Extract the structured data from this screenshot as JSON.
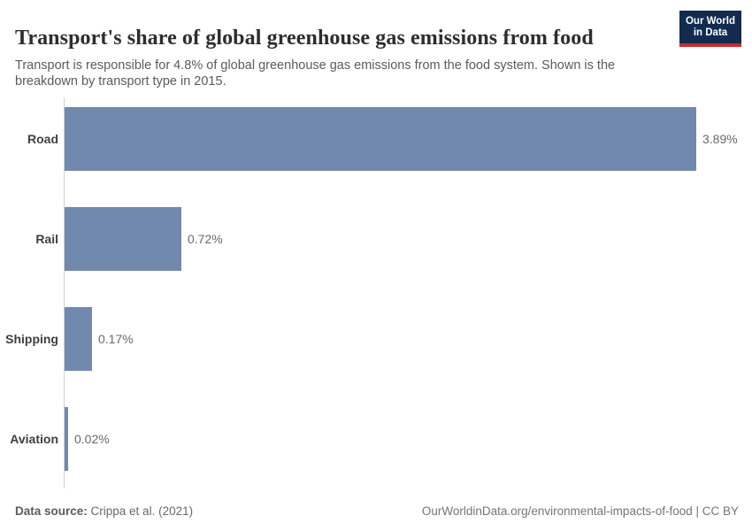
{
  "header": {
    "title": "Transport's share of global greenhouse gas emissions from food",
    "subtitle": "Transport is responsible for 4.8% of global greenhouse gas emissions from the food system. Shown is the breakdown by transport type in 2015.",
    "logo": {
      "line1": "Our World",
      "line2": "in Data",
      "bg_color": "#122b4e",
      "accent_color": "#c42d2d"
    }
  },
  "chart_data": {
    "type": "bar",
    "orientation": "horizontal",
    "categories": [
      "Road",
      "Rail",
      "Shipping",
      "Aviation"
    ],
    "values": [
      3.89,
      0.72,
      0.17,
      0.02
    ],
    "value_labels": [
      "3.89%",
      "0.72%",
      "0.17%",
      "0.02%"
    ],
    "unit": "%",
    "xlim": [
      0,
      3.89
    ],
    "grid": false,
    "legend": "none",
    "bar_color": "#7289ae",
    "axis_line_color": "#cfcfcf",
    "title": "Transport's share of global greenhouse gas emissions from food",
    "xlabel": "",
    "ylabel": ""
  },
  "footer": {
    "datasource_label": "Data source:",
    "datasource_value": " Crippa et al. (2021)",
    "note_right": "OurWorldinData.org/environmental-impacts-of-food | CC BY"
  }
}
